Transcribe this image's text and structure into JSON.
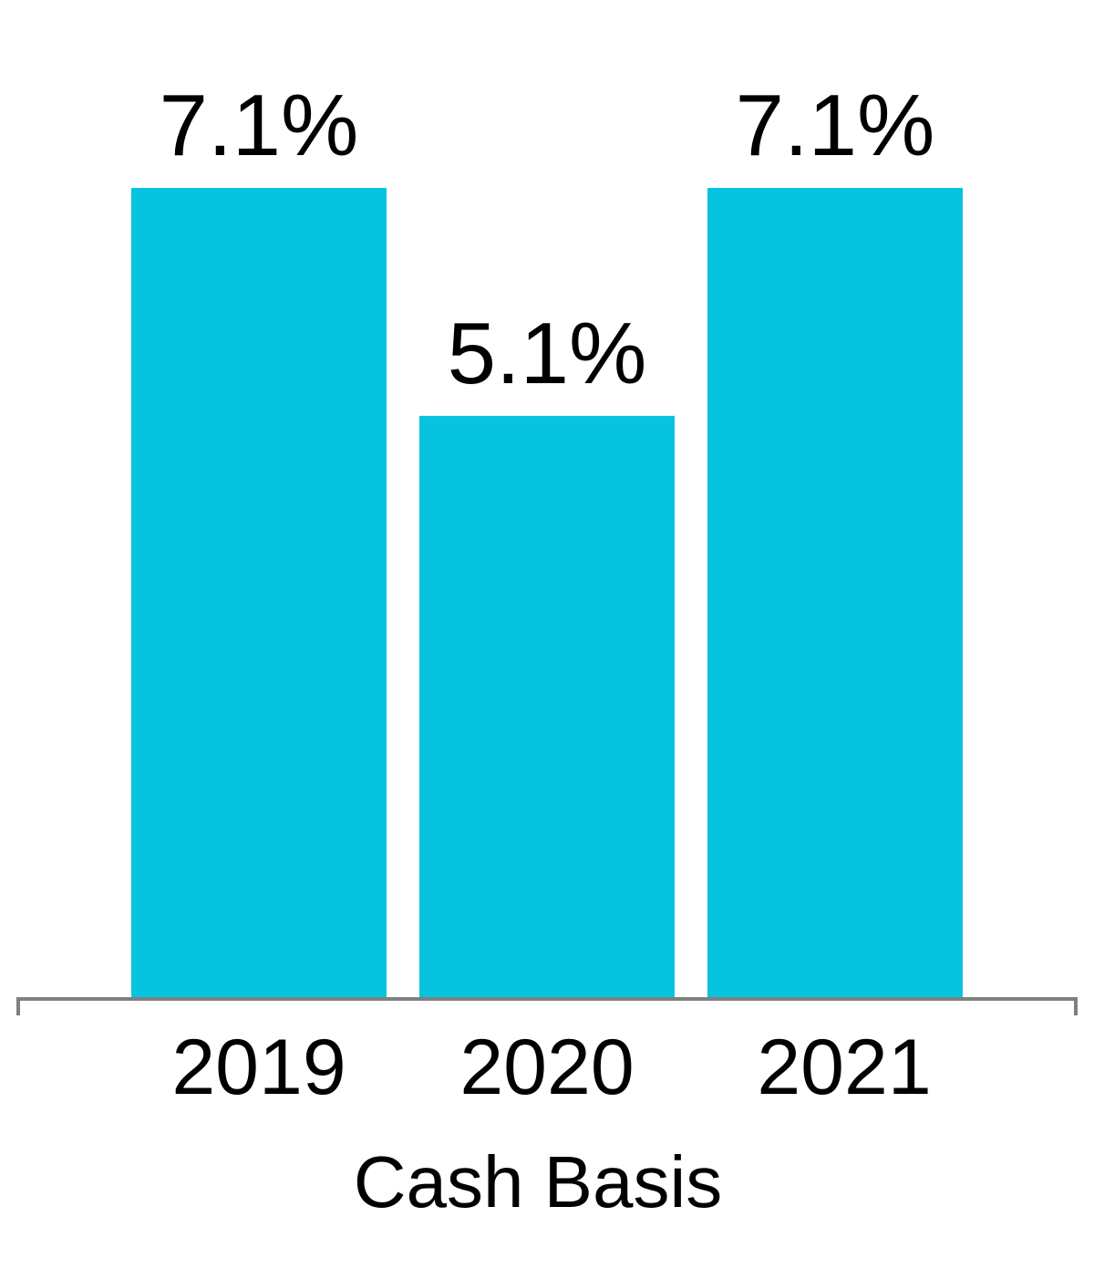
{
  "chart_data": {
    "type": "bar",
    "categories": [
      "2019",
      "2020",
      "2021"
    ],
    "values": [
      7.1,
      5.1,
      7.1
    ],
    "value_labels": [
      "7.1%",
      "5.1%",
      "7.1%"
    ],
    "title": "",
    "xlabel": "Cash Basis",
    "ylabel": "",
    "ylim": [
      0,
      7.1
    ],
    "grid": false,
    "legend": "none",
    "colors": {
      "bar": "#06C3DF",
      "axis": "#808080",
      "text": "#000000"
    }
  }
}
